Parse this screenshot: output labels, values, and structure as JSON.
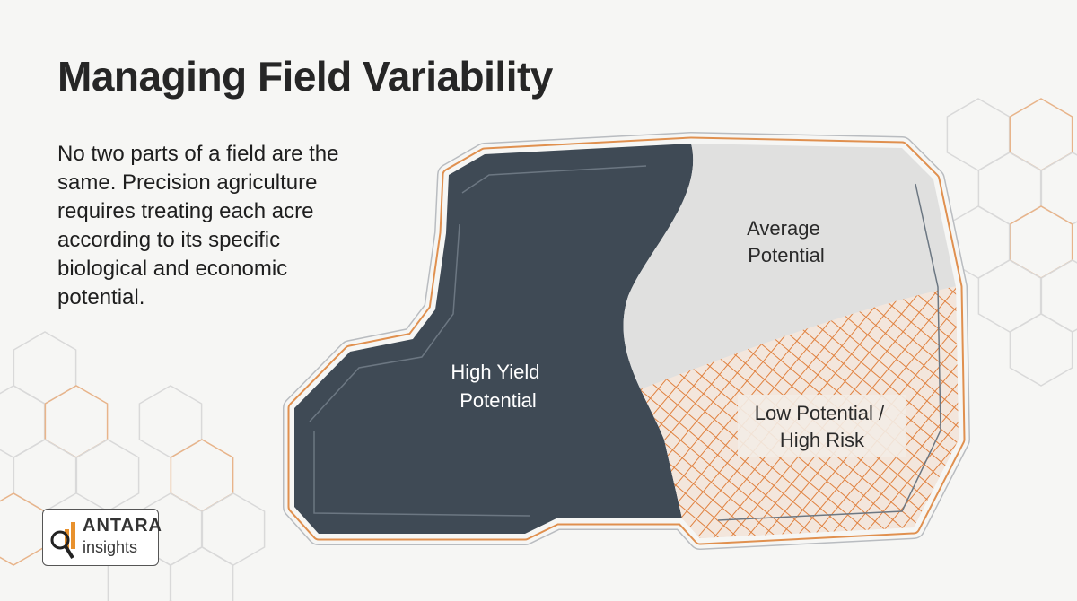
{
  "title": "Managing Field Variability",
  "description": "No two parts of a field are the same. Precision agriculture requires treating each acre according to its specific biological and economic potential.",
  "zones": [
    {
      "lines": [
        "High Yield",
        "Potential"
      ]
    },
    {
      "lines": [
        "Average",
        "Potential"
      ]
    },
    {
      "lines": [
        "Low Potential /",
        "High Risk"
      ]
    }
  ],
  "logo": {
    "brand": "ANTARA",
    "tagline": "insights"
  }
}
